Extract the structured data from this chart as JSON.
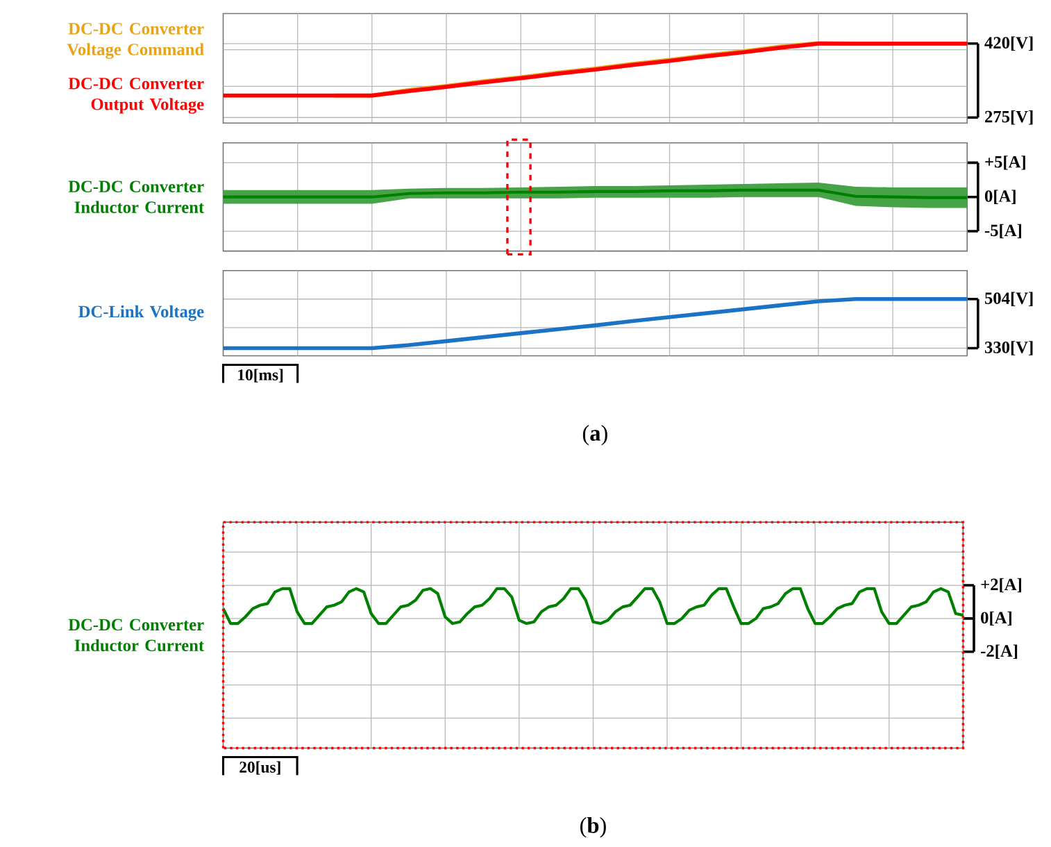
{
  "chart_data": [
    {
      "type": "line",
      "categories": [
        null,
        null,
        null,
        null,
        null,
        null,
        null,
        null,
        null,
        null,
        null,
        null,
        null,
        null,
        null,
        null,
        null,
        null,
        null,
        null,
        null
      ],
      "ylim": [
        264,
        479
      ],
      "yticks": [
        {
          "value": 420,
          "label": "420[V]"
        },
        {
          "value": 275,
          "label": "275[V]"
        },
        {
          "value": 336,
          "label": null
        },
        {
          "value": 408,
          "label": null
        }
      ],
      "grid": true,
      "tick_labels": "y",
      "series": [
        {
          "name": "DC-DC Converter Voltage Command",
          "color": "#e8a317",
          "values": [
            null,
            null,
            null,
            318,
            318,
            329,
            337,
            346,
            354,
            363,
            371,
            380,
            388,
            397,
            405,
            414,
            421,
            420,
            420,
            null,
            null
          ]
        },
        {
          "name": "DC-DC Converter Output Voltage",
          "color": "#ff0000",
          "values": [
            318,
            318,
            318,
            318,
            318,
            327,
            335,
            344,
            352,
            361,
            369,
            378,
            386,
            395,
            403,
            412,
            420,
            420,
            420,
            420,
            420
          ]
        }
      ]
    },
    {
      "type": "line",
      "categories": [
        null,
        null,
        null,
        null,
        null,
        null,
        null,
        null,
        null,
        null,
        null,
        null,
        null,
        null,
        null,
        null,
        null,
        null,
        null,
        null,
        null
      ],
      "ylim": [
        -7.9,
        7.9
      ],
      "yticks": [
        {
          "value": 5,
          "label": "+5[A]"
        },
        {
          "value": 0,
          "label": "0[A]"
        },
        {
          "value": -5,
          "label": "-5[A]"
        }
      ],
      "grid": true,
      "tick_labels": "y",
      "series": [
        {
          "name": "DC-DC Converter Inductor Current",
          "color": "#008000",
          "values": [
            0,
            0,
            0,
            0,
            0,
            0.5,
            0.6,
            0.6,
            0.7,
            0.7,
            0.8,
            0.8,
            0.9,
            0.9,
            1.0,
            1.0,
            1.0,
            0.1,
            0.0,
            -0.1,
            -0.1
          ],
          "lower": [
            -1.0,
            -1.0,
            -1.0,
            -1.0,
            -1.0,
            -0.2,
            -0.2,
            -0.2,
            -0.2,
            -0.2,
            -0.1,
            -0.1,
            -0.1,
            -0.1,
            0.0,
            0.0,
            0.0,
            -1.3,
            -1.5,
            -1.6,
            -1.6
          ],
          "upper": [
            1.0,
            1.0,
            1.0,
            1.0,
            1.0,
            1.2,
            1.3,
            1.3,
            1.4,
            1.5,
            1.6,
            1.6,
            1.7,
            1.8,
            1.9,
            2.0,
            2.1,
            1.5,
            1.4,
            1.4,
            1.4
          ]
        }
      ]
    },
    {
      "type": "line",
      "categories": [
        null,
        null,
        null,
        null,
        null,
        null,
        null,
        null,
        null,
        null,
        null,
        null,
        null,
        null,
        null,
        null,
        null,
        null,
        null,
        null,
        null
      ],
      "ylim": [
        303,
        605
      ],
      "yticks": [
        {
          "value": 504,
          "label": "504[V]"
        },
        {
          "value": 330,
          "label": "330[V]"
        },
        {
          "value": 403,
          "label": null
        }
      ],
      "grid": true,
      "tick_labels": "y",
      "annotations": [
        "10[ms]",
        "(**a**)"
      ],
      "series": [
        {
          "name": "DC-Link Voltage",
          "color": "#1a73c4",
          "values": [
            330,
            330,
            330,
            330,
            330,
            341,
            355,
            369,
            383,
            397,
            411,
            426,
            440,
            454,
            468,
            482,
            496,
            504,
            504,
            504,
            504
          ]
        }
      ]
    },
    {
      "type": "line",
      "categories": [
        null,
        null,
        null,
        null,
        null,
        null,
        null,
        null,
        null,
        null,
        null,
        null,
        null,
        null,
        null,
        null,
        null,
        null,
        null,
        null,
        null,
        null,
        null,
        null,
        null,
        null,
        null,
        null,
        null,
        null,
        null,
        null,
        null,
        null,
        null,
        null,
        null,
        null,
        null,
        null,
        null,
        null,
        null,
        null,
        null,
        null,
        null,
        null,
        null,
        null,
        null,
        null,
        null,
        null,
        null,
        null,
        null,
        null,
        null,
        null,
        null,
        null,
        null,
        null,
        null,
        null,
        null,
        null,
        null,
        null,
        null,
        null,
        null,
        null,
        null,
        null,
        null,
        null,
        null,
        null,
        null,
        null,
        null,
        null,
        null,
        null,
        null,
        null,
        null,
        null,
        null,
        null,
        null,
        null,
        null,
        null,
        null,
        null,
        null,
        null,
        null
      ],
      "ylim": [
        -7.8,
        5.8
      ],
      "yticks": [
        {
          "value": 2,
          "label": "+2[A]"
        },
        {
          "value": 0,
          "label": "0[A]"
        },
        {
          "value": -2,
          "label": "-2[A]"
        },
        {
          "value": 4,
          "label": null
        },
        {
          "value": -4,
          "label": null
        },
        {
          "value": -6,
          "label": null
        }
      ],
      "grid": true,
      "tick_labels": "y",
      "annotations": [
        "20[us]",
        "(**b**)"
      ],
      "series": [
        {
          "name": "DC-DC Converter Inductor Current",
          "color": "#008000",
          "values": [
            0.6,
            -0.3,
            -0.3,
            0.1,
            0.6,
            0.8,
            0.9,
            1.6,
            1.8,
            1.8,
            0.4,
            -0.3,
            -0.3,
            0.2,
            0.7,
            0.8,
            1.0,
            1.6,
            1.8,
            1.6,
            0.3,
            -0.3,
            -0.3,
            0.2,
            0.7,
            0.8,
            1.1,
            1.7,
            1.8,
            1.5,
            0.1,
            -0.3,
            -0.2,
            0.3,
            0.7,
            0.8,
            1.2,
            1.8,
            1.8,
            1.3,
            -0.1,
            -0.3,
            -0.2,
            0.4,
            0.7,
            0.8,
            1.2,
            1.8,
            1.8,
            1.1,
            -0.2,
            -0.3,
            -0.1,
            0.4,
            0.7,
            0.8,
            1.3,
            1.8,
            1.8,
            1.0,
            -0.3,
            -0.3,
            0.0,
            0.5,
            0.7,
            0.8,
            1.4,
            1.8,
            1.8,
            0.7,
            -0.3,
            -0.3,
            0.0,
            0.6,
            0.7,
            0.9,
            1.5,
            1.8,
            1.8,
            0.6,
            -0.3,
            -0.3,
            0.1,
            0.6,
            0.8,
            0.9,
            1.6,
            1.8,
            1.8,
            0.4,
            -0.3,
            -0.3,
            0.2,
            0.7,
            0.8,
            1.0,
            1.6,
            1.8,
            1.6,
            0.3,
            0.2
          ]
        }
      ]
    }
  ]
}
